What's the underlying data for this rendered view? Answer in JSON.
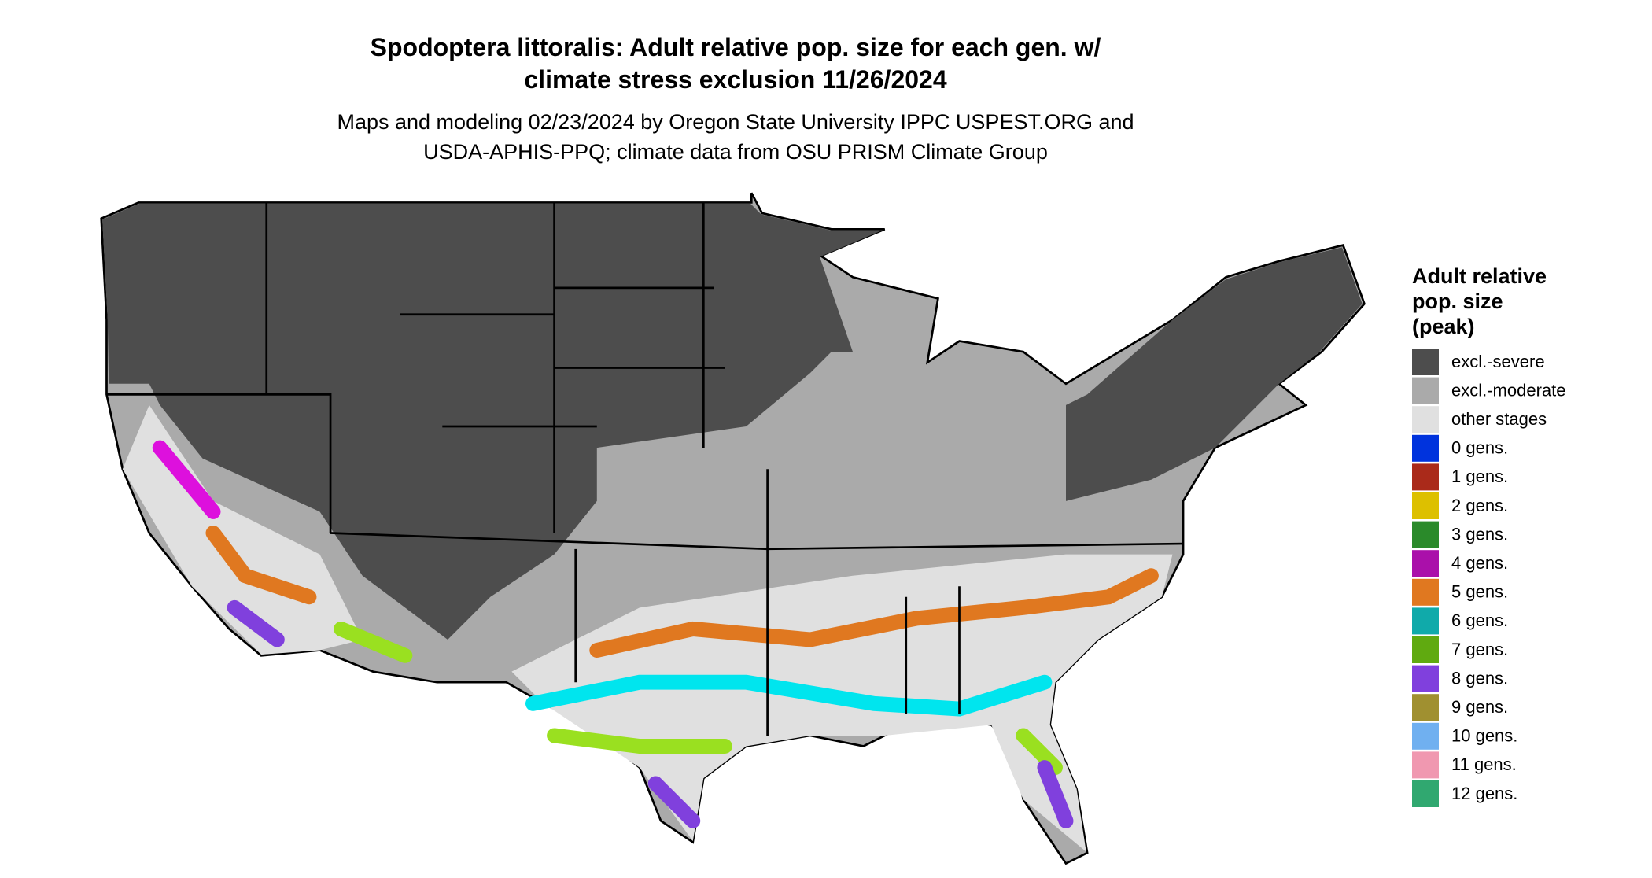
{
  "title": [
    "Spodoptera littoralis: Adult relative pop. size for each gen. w/",
    "climate stress exclusion 11/26/2024"
  ],
  "subtitle": [
    "Maps and modeling 02/23/2024 by Oregon State University IPPC USPEST.ORG and",
    "USDA-APHIS-PPQ; climate data from OSU PRISM Climate Group"
  ],
  "legend": {
    "title": [
      "Adult relative",
      "pop. size",
      "(peak)"
    ],
    "items": [
      {
        "label": "excl.-severe",
        "color": "#4d4d4d"
      },
      {
        "label": "excl.-moderate",
        "color": "#aaaaaa"
      },
      {
        "label": "other stages",
        "color": "#e0e0e0"
      },
      {
        "label": "0 gens.",
        "color": "#0033dd"
      },
      {
        "label": "1 gens.",
        "color": "#aa2a1a"
      },
      {
        "label": "2 gens.",
        "color": "#ddc000"
      },
      {
        "label": "3 gens.",
        "color": "#2a8a2a"
      },
      {
        "label": "4 gens.",
        "color": "#aa10aa"
      },
      {
        "label": "5 gens.",
        "color": "#e07820"
      },
      {
        "label": "6 gens.",
        "color": "#10aaaa"
      },
      {
        "label": "7 gens.",
        "color": "#60aa10"
      },
      {
        "label": "8 gens.",
        "color": "#8040dd"
      },
      {
        "label": "9 gens.",
        "color": "#a09030"
      },
      {
        "label": "10 gens.",
        "color": "#70b0f0"
      },
      {
        "label": "11 gens.",
        "color": "#f098b0"
      },
      {
        "label": "12 gens.",
        "color": "#30a870"
      }
    ]
  }
}
